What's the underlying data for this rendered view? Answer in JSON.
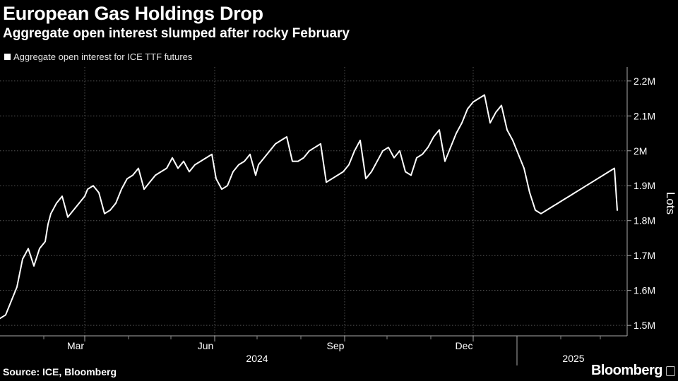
{
  "chart_data": {
    "type": "line",
    "title": "European Gas Holdings Drop",
    "subtitle": "Aggregate open interest slumped after rocky February",
    "legend": [
      "Aggregate open interest for ICE TTF futures"
    ],
    "ylabel": "Lots",
    "ylim": [
      1.47,
      2.24
    ],
    "yticks": [
      {
        "value": 1.5,
        "label": "1.5M"
      },
      {
        "value": 1.6,
        "label": "1.6M"
      },
      {
        "value": 1.7,
        "label": "1.7M"
      },
      {
        "value": 1.8,
        "label": "1.8M"
      },
      {
        "value": 1.9,
        "label": "1.9M"
      },
      {
        "value": 2.0,
        "label": "2M"
      },
      {
        "value": 2.1,
        "label": "2.1M"
      },
      {
        "value": 2.2,
        "label": "2.2M"
      }
    ],
    "xlim": [
      "2024-01-01",
      "2025-03-20"
    ],
    "xticks": [
      {
        "date": "2024-03-01",
        "label": "Mar"
      },
      {
        "date": "2024-06-01",
        "label": "Jun"
      },
      {
        "date": "2024-09-01",
        "label": "Sep"
      },
      {
        "date": "2024-12-01",
        "label": "Dec"
      }
    ],
    "minor_ticks": [
      "2024-02-01",
      "2024-04-01",
      "2024-05-01",
      "2024-07-01",
      "2024-08-01",
      "2024-10-01",
      "2024-11-01",
      "2025-02-01",
      "2025-03-01"
    ],
    "years": [
      {
        "label": "2024",
        "center": "2024-07-01"
      },
      {
        "label": "2025",
        "center": "2025-02-10"
      }
    ],
    "year_divider": "2025-01-01",
    "series": [
      {
        "name": "Aggregate open interest for ICE TTF futures",
        "color": "#ffffff",
        "x": [
          "2024-01-01",
          "2024-01-05",
          "2024-01-09",
          "2024-01-13",
          "2024-01-17",
          "2024-01-21",
          "2024-01-25",
          "2024-01-29",
          "2024-02-02",
          "2024-02-04",
          "2024-02-06",
          "2024-02-10",
          "2024-02-14",
          "2024-02-18",
          "2024-02-22",
          "2024-02-26",
          "2024-03-01",
          "2024-03-03",
          "2024-03-07",
          "2024-03-11",
          "2024-03-15",
          "2024-03-19",
          "2024-03-23",
          "2024-03-27",
          "2024-03-31",
          "2024-04-04",
          "2024-04-08",
          "2024-04-12",
          "2024-04-16",
          "2024-04-20",
          "2024-04-24",
          "2024-04-28",
          "2024-05-02",
          "2024-05-06",
          "2024-05-10",
          "2024-05-14",
          "2024-05-18",
          "2024-05-22",
          "2024-05-26",
          "2024-05-30",
          "2024-06-02",
          "2024-06-06",
          "2024-06-10",
          "2024-06-14",
          "2024-06-18",
          "2024-06-22",
          "2024-06-26",
          "2024-06-30",
          "2024-07-02",
          "2024-07-06",
          "2024-07-10",
          "2024-07-14",
          "2024-07-18",
          "2024-07-22",
          "2024-07-26",
          "2024-07-30",
          "2024-08-03",
          "2024-08-07",
          "2024-08-11",
          "2024-08-15",
          "2024-08-19",
          "2024-08-23",
          "2024-08-27",
          "2024-08-31",
          "2024-09-04",
          "2024-09-08",
          "2024-09-12",
          "2024-09-16",
          "2024-09-20",
          "2024-09-24",
          "2024-09-28",
          "2024-10-02",
          "2024-10-06",
          "2024-10-10",
          "2024-10-14",
          "2024-10-18",
          "2024-10-22",
          "2024-10-26",
          "2024-10-30",
          "2024-11-03",
          "2024-11-07",
          "2024-11-11",
          "2024-11-15",
          "2024-11-19",
          "2024-11-23",
          "2024-11-27",
          "2024-12-01",
          "2024-12-05",
          "2024-12-09",
          "2024-12-13",
          "2024-12-17",
          "2024-12-21",
          "2024-12-25",
          "2024-12-29",
          "2025-01-02",
          "2025-01-06",
          "2025-01-10",
          "2025-01-14",
          "2025-01-18",
          "2025-01-22",
          "2025-01-26",
          "2025-01-30",
          "2025-02-03",
          "2025-02-07",
          "2025-02-11",
          "2025-02-15",
          "2025-02-19",
          "2025-02-23",
          "2025-02-27",
          "2025-03-03",
          "2025-03-07",
          "2025-03-11",
          "2025-03-13"
        ],
        "values": [
          1.52,
          1.53,
          1.57,
          1.61,
          1.69,
          1.72,
          1.67,
          1.72,
          1.74,
          1.79,
          1.82,
          1.85,
          1.87,
          1.81,
          1.83,
          1.85,
          1.87,
          1.89,
          1.9,
          1.88,
          1.82,
          1.83,
          1.85,
          1.89,
          1.92,
          1.93,
          1.95,
          1.89,
          1.91,
          1.93,
          1.94,
          1.95,
          1.98,
          1.95,
          1.97,
          1.94,
          1.96,
          1.97,
          1.98,
          1.99,
          1.92,
          1.89,
          1.9,
          1.94,
          1.96,
          1.97,
          1.99,
          1.93,
          1.96,
          1.98,
          2.0,
          2.02,
          2.03,
          2.04,
          1.97,
          1.97,
          1.98,
          2.0,
          2.01,
          2.02,
          1.91,
          1.92,
          1.93,
          1.94,
          1.96,
          2.0,
          2.03,
          1.92,
          1.94,
          1.97,
          2.0,
          2.01,
          1.98,
          2.0,
          1.94,
          1.93,
          1.98,
          1.99,
          2.01,
          2.04,
          2.06,
          1.97,
          2.01,
          2.05,
          2.08,
          2.12,
          2.14,
          2.15,
          2.16,
          2.08,
          2.11,
          2.13,
          2.06,
          2.03,
          1.99,
          1.95,
          1.88,
          1.83,
          1.82,
          1.83,
          1.84,
          1.85,
          1.86,
          1.87,
          1.88,
          1.89,
          1.9,
          1.91,
          1.92,
          1.93,
          1.94,
          1.95,
          1.83
        ]
      }
    ],
    "source": "Source: ICE, Bloomberg",
    "brand": "Bloomberg"
  }
}
